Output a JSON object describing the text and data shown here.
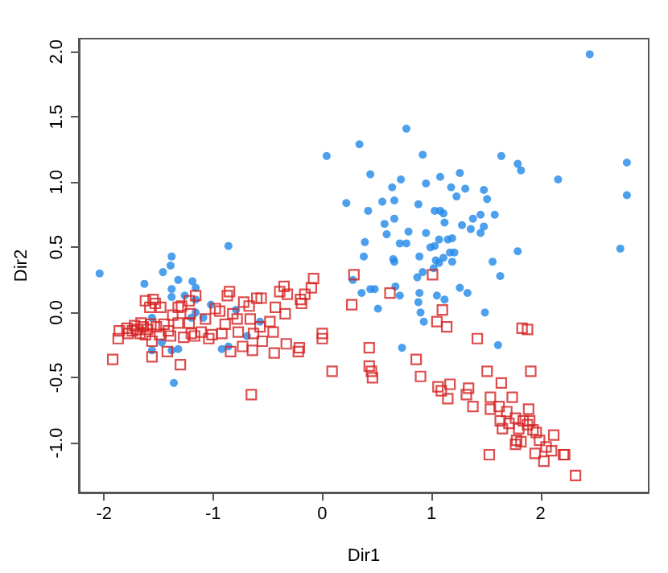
{
  "chart_data": {
    "type": "scatter",
    "xlabel": "Dir1",
    "ylabel": "Dir2",
    "xlim": [
      -2.23,
      2.99
    ],
    "ylim": [
      -1.38,
      2.1
    ],
    "xticks": [
      -2,
      -1,
      0,
      1,
      2
    ],
    "yticks": [
      {
        "value": -1,
        "label": "-1.0"
      },
      -0.5,
      {
        "value": 0,
        "label": "0.0"
      },
      0.5,
      {
        "value": 1,
        "label": "1.0"
      },
      1.5,
      {
        "value": 2,
        "label": "2.0"
      }
    ],
    "series": [
      {
        "color": "#2188e8",
        "marker": "circle",
        "x": [
          2.45,
          0.77,
          0.34,
          0.04,
          0.92,
          1.64,
          1.79,
          1.82,
          2.79,
          2.79,
          2.16,
          2.73,
          0.44,
          0.72,
          1.08,
          1.26,
          0.95,
          0.64,
          1.18,
          1.31,
          1.48,
          0.22,
          0.55,
          0.66,
          0.88,
          1.23,
          1.51,
          0.42,
          1.03,
          1.08,
          1.11,
          0.57,
          0.66,
          1.45,
          1.38,
          1.58,
          1.12,
          1.28,
          1.36,
          0.59,
          0.79,
          0.95,
          1.48,
          1.45,
          0.71,
          0.77,
          0.39,
          1.07,
          1.19,
          1.15,
          0.99,
          1.03,
          1.79,
          1.17,
          1.21,
          0.38,
          0.65,
          0.66,
          0.89,
          1.04,
          1.07,
          1.11,
          1.19,
          1.56,
          1.02,
          0.87,
          1.63,
          0.92,
          0.28,
          1.26,
          0.67,
          0.44,
          0.48,
          0.36,
          0.89,
          1.33,
          0.71,
          1.05,
          0.88,
          1.12,
          0.51,
          0.9,
          1.49,
          0.93,
          1.61,
          0.73,
          -2.04,
          -1.38,
          -1.39,
          -0.86,
          -1.46,
          -1.63,
          -1.32,
          -1.38,
          -1.38,
          -1.19,
          -1.16,
          -1.26,
          -1.16,
          -1.02,
          -0.79,
          -1.16,
          -1.56,
          -1.09,
          -1.2,
          -0.57,
          -0.69,
          -1.47,
          -1.56,
          -1.38,
          -1.32,
          -0.92,
          -0.86,
          -1.36
        ],
        "values": [
          1.98,
          1.41,
          1.29,
          1.2,
          1.21,
          1.2,
          1.14,
          1.09,
          1.15,
          0.9,
          1.02,
          0.49,
          1.06,
          1.02,
          1.04,
          1.07,
          0.99,
          0.96,
          0.96,
          0.95,
          0.94,
          0.84,
          0.85,
          0.86,
          0.83,
          0.89,
          0.87,
          0.78,
          0.78,
          0.78,
          0.76,
          0.68,
          0.72,
          0.75,
          0.72,
          0.75,
          0.69,
          0.67,
          0.64,
          0.6,
          0.62,
          0.61,
          0.66,
          0.61,
          0.53,
          0.53,
          0.54,
          0.56,
          0.57,
          0.56,
          0.5,
          0.51,
          0.47,
          0.46,
          0.46,
          0.43,
          0.41,
          0.39,
          0.43,
          0.4,
          0.38,
          0.42,
          0.39,
          0.39,
          0.34,
          0.27,
          0.28,
          0.31,
          0.25,
          0.19,
          0.2,
          0.18,
          0.18,
          0.15,
          0.15,
          0.15,
          0.13,
          0.13,
          0.08,
          0.1,
          0.03,
          0.0,
          0.0,
          -0.07,
          -0.25,
          -0.27,
          0.3,
          0.43,
          0.36,
          0.51,
          0.31,
          0.22,
          0.25,
          0.18,
          0.12,
          0.24,
          0.19,
          0.13,
          0.1,
          0.06,
          0.02,
          0.0,
          -0.04,
          -0.04,
          -0.04,
          -0.07,
          -0.18,
          -0.23,
          -0.29,
          -0.29,
          -0.28,
          -0.28,
          -0.26,
          -0.54
        ]
      },
      {
        "color": "#d42020",
        "marker": "square",
        "x": [
          1.01,
          1.1,
          1.05,
          1.14,
          1.42,
          1.83,
          1.88,
          0.29,
          0.27,
          0.62,
          0.43,
          0.43,
          0.45,
          0.46,
          0.09,
          0.0,
          0.0,
          0.86,
          0.9,
          1.06,
          1.09,
          1.17,
          1.15,
          1.32,
          1.34,
          1.38,
          1.51,
          1.91,
          1.64,
          1.54,
          1.54,
          1.74,
          1.62,
          1.69,
          1.89,
          1.63,
          1.65,
          1.71,
          1.77,
          1.84,
          1.8,
          1.88,
          1.93,
          1.9,
          1.78,
          1.77,
          1.82,
          1.96,
          1.99,
          2.12,
          2.05,
          1.95,
          2.1,
          2.03,
          2.21,
          2.22,
          2.32,
          1.53,
          -1.92,
          -1.87,
          -1.86,
          -1.79,
          -1.74,
          -1.7,
          -1.67,
          -1.64,
          -1.62,
          -1.6,
          -1.57,
          -1.55,
          -1.62,
          -1.53,
          -1.58,
          -1.48,
          -1.56,
          -1.56,
          -1.52,
          -1.49,
          -1.45,
          -1.41,
          -1.42,
          -1.39,
          -1.32,
          -1.32,
          -1.3,
          -1.27,
          -1.21,
          -1.22,
          -1.22,
          -1.16,
          -1.17,
          -1.11,
          -1.07,
          -1.04,
          -1.01,
          -0.98,
          -0.94,
          -0.92,
          -0.89,
          -0.87,
          -0.85,
          -0.84,
          -0.82,
          -0.78,
          -0.77,
          -0.73,
          -0.72,
          -0.67,
          -0.66,
          -0.63,
          -0.64,
          -0.65,
          -0.6,
          -0.56,
          -0.57,
          -0.55,
          -0.48,
          -0.45,
          -0.44,
          -0.43,
          -0.39,
          -0.35,
          -0.34,
          -0.32,
          -0.33,
          -0.22,
          -0.21,
          -0.2,
          -0.19,
          -0.16,
          -0.1,
          -0.08,
          -1.29,
          -1.2,
          -1.37,
          -1.72,
          -1.66,
          -1.78
        ],
        "values": [
          0.29,
          0.02,
          -0.07,
          -0.11,
          -0.2,
          -0.12,
          -0.13,
          0.29,
          0.06,
          0.15,
          -0.27,
          -0.41,
          -0.45,
          -0.5,
          -0.45,
          -0.16,
          -0.2,
          -0.36,
          -0.49,
          -0.57,
          -0.6,
          -0.55,
          -0.66,
          -0.63,
          -0.58,
          -0.72,
          -0.45,
          -0.45,
          -0.54,
          -0.65,
          -0.74,
          -0.65,
          -0.72,
          -0.76,
          -0.74,
          -0.83,
          -0.89,
          -0.85,
          -0.81,
          -0.83,
          -0.89,
          -0.86,
          -0.9,
          -0.83,
          -0.98,
          -1.01,
          -0.99,
          -0.92,
          -0.98,
          -0.94,
          -1.03,
          -1.08,
          -1.06,
          -1.14,
          -1.09,
          -1.09,
          -1.25,
          -1.09,
          -0.36,
          -0.2,
          -0.14,
          -0.12,
          -0.14,
          -0.13,
          -0.16,
          -0.11,
          -0.17,
          -0.13,
          -0.09,
          0.1,
          0.09,
          0.07,
          0.04,
          0.04,
          -0.22,
          -0.34,
          -0.11,
          -0.17,
          -0.09,
          -0.14,
          -0.3,
          -0.18,
          -0.08,
          0.04,
          -0.4,
          -0.19,
          -0.01,
          -0.08,
          0.09,
          0.13,
          -0.18,
          -0.15,
          -0.05,
          -0.2,
          -0.17,
          0.03,
          0.01,
          -0.16,
          -0.09,
          0.13,
          0.16,
          -0.3,
          -0.01,
          -0.05,
          -0.15,
          -0.26,
          0.08,
          0.05,
          -0.05,
          -0.16,
          -0.29,
          -0.63,
          0.11,
          0.11,
          -0.11,
          -0.22,
          -0.07,
          -0.15,
          -0.31,
          0.04,
          0.16,
          0.2,
          -0.01,
          0.14,
          -0.24,
          -0.3,
          -0.27,
          0.1,
          0.07,
          0.14,
          0.19,
          0.26,
          0.05,
          -0.16,
          -0.02,
          -0.1,
          -0.08,
          -0.16
        ]
      }
    ]
  }
}
